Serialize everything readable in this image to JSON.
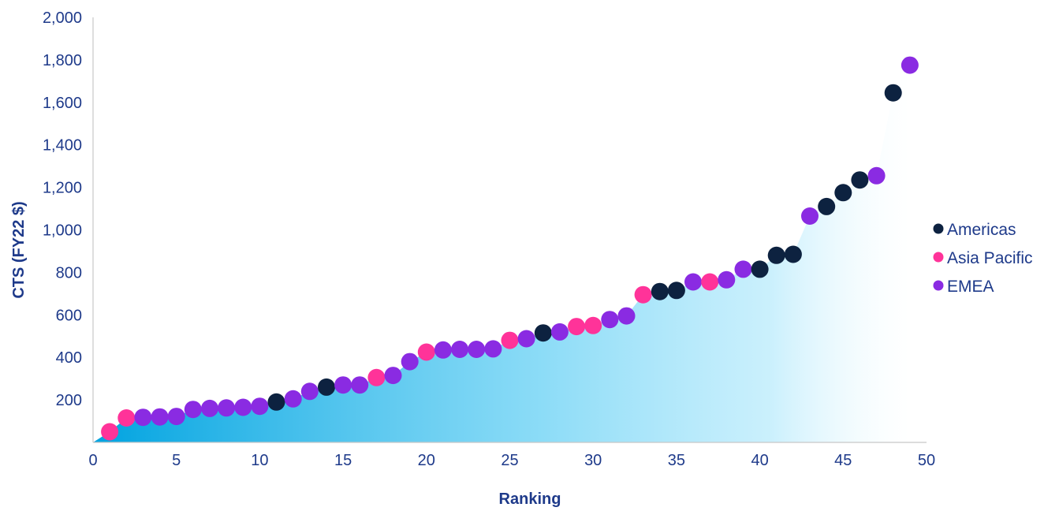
{
  "chart_data": {
    "type": "scatter",
    "xlabel": "Ranking",
    "ylabel": "CTS (FY22 $)",
    "xlim": [
      0,
      50
    ],
    "ylim": [
      0,
      2000
    ],
    "x_ticks": [
      "0",
      "5",
      "10",
      "15",
      "20",
      "25",
      "30",
      "35",
      "40",
      "45",
      "50"
    ],
    "y_ticks": [
      "200",
      "400",
      "600",
      "800",
      "1,000",
      "1,200",
      "1,400",
      "1,600",
      "1,800",
      "2,000"
    ],
    "grid": false,
    "legend_position": "right",
    "area_fill": {
      "from": "#00a3e0",
      "to": "#ffffff"
    },
    "series": [
      {
        "name": "Americas",
        "color": "#0d2240",
        "points": [
          [
            11,
            190
          ],
          [
            14,
            260
          ],
          [
            27,
            515
          ],
          [
            34,
            710
          ],
          [
            35,
            715
          ],
          [
            40,
            815
          ],
          [
            41,
            880
          ],
          [
            42,
            885
          ],
          [
            44,
            1110
          ],
          [
            45,
            1175
          ],
          [
            46,
            1235
          ],
          [
            48,
            1645
          ]
        ]
      },
      {
        "name": "Asia Pacific",
        "color": "#ff3399",
        "points": [
          [
            1,
            50
          ],
          [
            2,
            115
          ],
          [
            17,
            305
          ],
          [
            20,
            425
          ],
          [
            25,
            480
          ],
          [
            29,
            545
          ],
          [
            30,
            550
          ],
          [
            33,
            695
          ],
          [
            37,
            755
          ]
        ]
      },
      {
        "name": "EMEA",
        "color": "#8a2be2",
        "points": [
          [
            3,
            118
          ],
          [
            4,
            120
          ],
          [
            5,
            122
          ],
          [
            6,
            155
          ],
          [
            7,
            160
          ],
          [
            8,
            162
          ],
          [
            9,
            165
          ],
          [
            10,
            170
          ],
          [
            12,
            205
          ],
          [
            13,
            240
          ],
          [
            15,
            270
          ],
          [
            16,
            270
          ],
          [
            18,
            315
          ],
          [
            19,
            380
          ],
          [
            21,
            435
          ],
          [
            22,
            438
          ],
          [
            23,
            438
          ],
          [
            24,
            440
          ],
          [
            26,
            488
          ],
          [
            28,
            520
          ],
          [
            31,
            578
          ],
          [
            32,
            595
          ],
          [
            36,
            755
          ],
          [
            38,
            765
          ],
          [
            39,
            815
          ],
          [
            43,
            1065
          ],
          [
            47,
            1255
          ],
          [
            49,
            1775
          ]
        ]
      }
    ]
  }
}
